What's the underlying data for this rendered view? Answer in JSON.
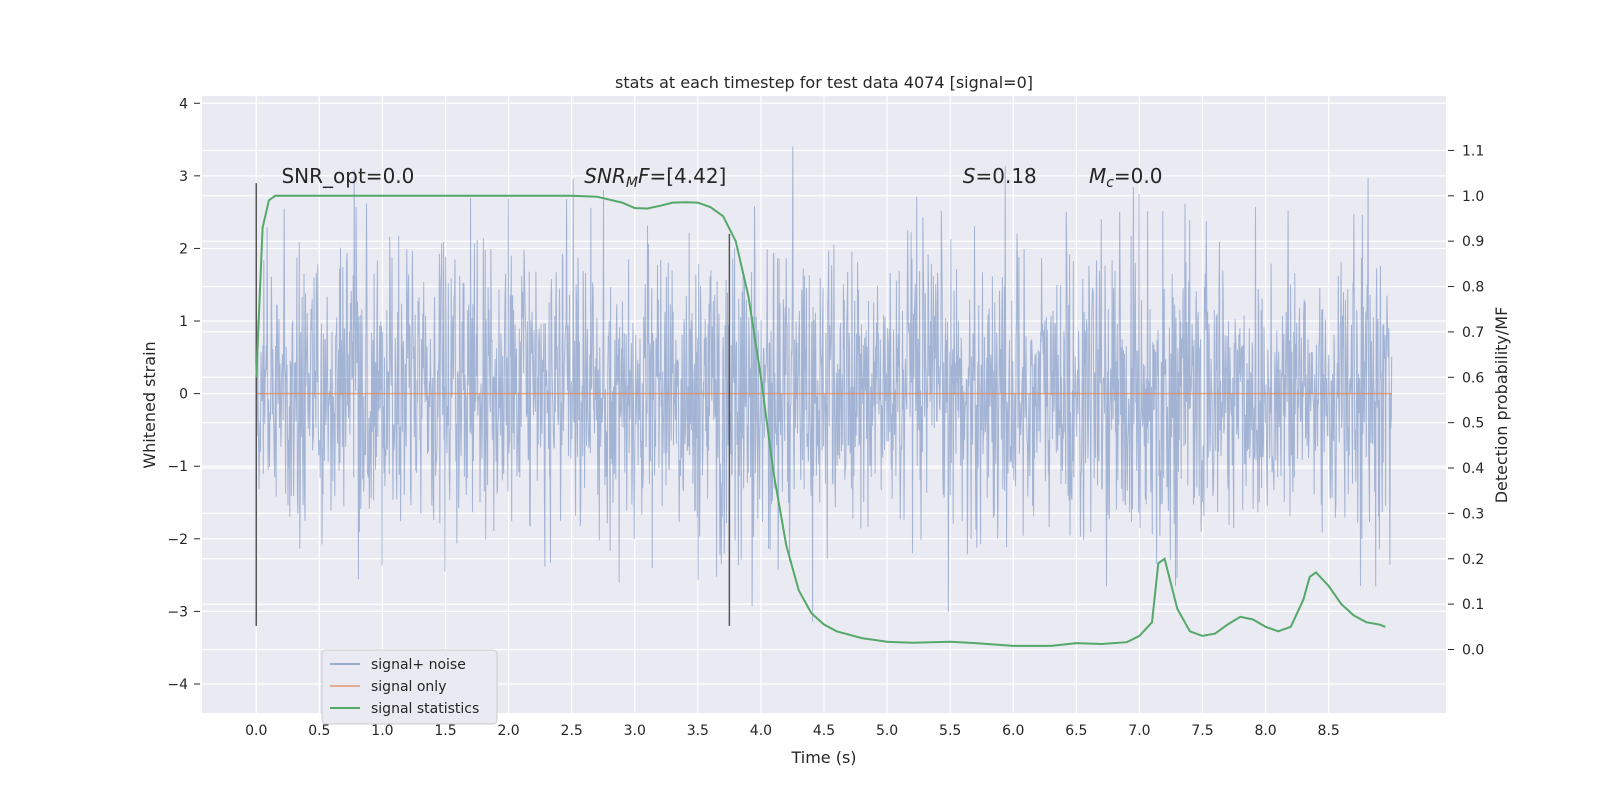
{
  "chart_data": {
    "type": "line",
    "title": "stats at each timestep for test data 4074 [signal=0]",
    "xlabel": "Time (s)",
    "ylabel": "Whitened strain",
    "y2label": "Detection probability/MF",
    "xlim": [
      -0.43,
      9.43
    ],
    "ylim": [
      -4.4,
      4.1
    ],
    "y2lim": [
      -0.14,
      1.22
    ],
    "xticks": [
      "0.0",
      "0.5",
      "1.0",
      "1.5",
      "2.0",
      "2.5",
      "3.0",
      "3.5",
      "4.0",
      "4.5",
      "5.0",
      "5.5",
      "6.0",
      "6.5",
      "7.0",
      "7.5",
      "8.0",
      "8.5"
    ],
    "yticks": [
      "4",
      "3",
      "2",
      "1",
      "0",
      "−1",
      "−2",
      "−3",
      "−4"
    ],
    "y2ticks": [
      "1.1",
      "1.0",
      "0.9",
      "0.8",
      "0.7",
      "0.6",
      "0.5",
      "0.4",
      "0.3",
      "0.2",
      "0.1",
      "0.0"
    ],
    "grid": true,
    "legend_position": "lower-left",
    "colors": {
      "noise": "#4c72b0",
      "signal": "#dd8452",
      "stats": "#55a868",
      "background": "#eaeaf2",
      "vline": "#555555"
    },
    "annotations": [
      {
        "id": "snr-opt",
        "text": "SNR_opt=0.0",
        "x": 0.2,
        "y": 2.9
      },
      {
        "id": "snr-mf-label",
        "text": "SNR",
        "sub": "M",
        "rest": "F=[4.42]",
        "x": 2.6,
        "y": 2.9
      },
      {
        "id": "s-stat",
        "text": "S",
        "rest": "=0.18",
        "x": 5.6,
        "y": 2.9
      },
      {
        "id": "mc-stat",
        "text": "M",
        "sub": "c",
        "rest": "=0.0",
        "x": 6.6,
        "y": 2.9
      }
    ],
    "vlines": [
      {
        "x": 0.0,
        "ymin": -3.2,
        "ymax": 2.9
      },
      {
        "x": 3.75,
        "ymin": -3.2,
        "ymax": 2.2
      }
    ],
    "series": [
      {
        "name": "signal+ noise",
        "kind": "noise",
        "t_start": 0.0,
        "t_end": 9.0,
        "peak_max": 3.7,
        "peak_min": -4.0,
        "dense_band": [
          -1.4,
          1.7
        ]
      },
      {
        "name": "signal only",
        "kind": "flat",
        "x": [
          0.0,
          9.0
        ],
        "y": [
          0.0,
          0.0
        ]
      },
      {
        "name": "signal statistics",
        "kind": "curve",
        "axis": "y2",
        "x": [
          0.0,
          0.05,
          0.1,
          0.15,
          0.2,
          0.5,
          1.0,
          2.0,
          2.5,
          2.7,
          2.9,
          3.0,
          3.1,
          3.2,
          3.3,
          3.4,
          3.5,
          3.6,
          3.7,
          3.8,
          3.9,
          4.0,
          4.1,
          4.2,
          4.3,
          4.4,
          4.5,
          4.6,
          4.8,
          5.0,
          5.2,
          5.5,
          5.7,
          6.0,
          6.3,
          6.5,
          6.7,
          6.9,
          7.0,
          7.1,
          7.15,
          7.2,
          7.3,
          7.4,
          7.5,
          7.6,
          7.7,
          7.8,
          7.9,
          8.0,
          8.1,
          8.2,
          8.3,
          8.35,
          8.4,
          8.5,
          8.6,
          8.7,
          8.8,
          8.9,
          8.95
        ],
        "y": [
          0.6,
          0.93,
          0.99,
          1.0,
          1.0,
          1.0,
          1.0,
          1.0,
          1.0,
          0.998,
          0.985,
          0.973,
          0.972,
          0.978,
          0.985,
          0.986,
          0.985,
          0.975,
          0.955,
          0.9,
          0.78,
          0.6,
          0.39,
          0.23,
          0.13,
          0.08,
          0.055,
          0.04,
          0.025,
          0.017,
          0.015,
          0.017,
          0.014,
          0.008,
          0.008,
          0.014,
          0.012,
          0.016,
          0.03,
          0.06,
          0.19,
          0.2,
          0.09,
          0.04,
          0.03,
          0.035,
          0.055,
          0.072,
          0.066,
          0.05,
          0.04,
          0.05,
          0.11,
          0.16,
          0.17,
          0.14,
          0.1,
          0.075,
          0.06,
          0.055,
          0.05
        ]
      }
    ]
  }
}
